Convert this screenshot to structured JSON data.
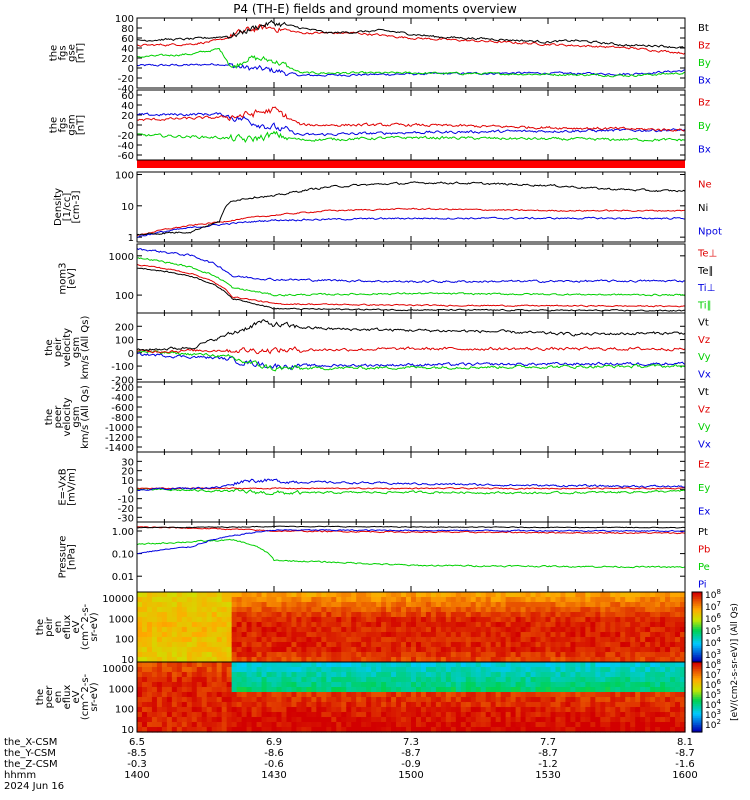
{
  "title": "P4 (TH-E) fields and ground moments overview",
  "x_axis": {
    "tick_positions_hours": [
      14.0,
      14.5,
      15.0,
      15.5,
      16.0
    ],
    "rows": [
      {
        "label": "the_X-CSM",
        "values": [
          "6.5",
          "6.9",
          "7.3",
          "7.7",
          "8.1"
        ]
      },
      {
        "label": "the_Y-CSM",
        "values": [
          "-8.5",
          "-8.6",
          "-8.7",
          "-8.7",
          "-8.7"
        ]
      },
      {
        "label": "the_Z-CSM",
        "values": [
          "-0.3",
          "-0.6",
          "-0.9",
          "-1.2",
          "-1.6"
        ]
      },
      {
        "label": "hhmm",
        "values": [
          "1400",
          "1430",
          "1500",
          "1530",
          "1600"
        ]
      }
    ],
    "date": "2024 Jun 16"
  },
  "colors": {
    "black": "#000000",
    "red": "#e00000",
    "green": "#00d000",
    "blue": "#0000e0"
  },
  "panels": [
    {
      "id": "fgs-gse",
      "ylabel": [
        "the",
        "fgs",
        "gse",
        "[nT]"
      ],
      "scale": "linear",
      "ylim": [
        -40,
        100
      ],
      "ticks": [
        "100",
        "80",
        "60",
        "40",
        "20",
        "0",
        "-20",
        "-40"
      ],
      "legend": [
        {
          "text": "Bt",
          "color": "black"
        },
        {
          "text": "Bz",
          "color": "red"
        },
        {
          "text": "By",
          "color": "green"
        },
        {
          "text": "Bx",
          "color": "blue"
        }
      ]
    },
    {
      "id": "fgs-gsm",
      "ylabel": [
        "the",
        "fgs",
        "gsm",
        "[nT]"
      ],
      "scale": "linear",
      "ylim": [
        -70,
        70
      ],
      "ticks": [
        "60",
        "40",
        "20",
        "0",
        "-20",
        "-40",
        "-60"
      ],
      "legend": [
        {
          "text": "Bz",
          "color": "red"
        },
        {
          "text": "By",
          "color": "green"
        },
        {
          "text": "Bx",
          "color": "blue"
        }
      ]
    },
    {
      "id": "density",
      "ylabel": [
        "Density",
        "[1/cc]",
        "[cm-3]"
      ],
      "scale": "log",
      "ylim": [
        0.7,
        120
      ],
      "ticks": [
        "100",
        "10",
        "1"
      ],
      "legend": [
        {
          "text": "Ne",
          "color": "red"
        },
        {
          "text": "Ni",
          "color": "black"
        },
        {
          "text": "Npot",
          "color": "blue"
        }
      ]
    },
    {
      "id": "temperature",
      "ylabel": [
        "mom3",
        "[eV]"
      ],
      "scale": "log",
      "ylim": [
        35,
        2000
      ],
      "ticks": [
        "1000",
        "100"
      ],
      "legend": [
        {
          "text": "Te⊥",
          "color": "red"
        },
        {
          "text": "Te∥",
          "color": "black"
        },
        {
          "text": "Ti⊥",
          "color": "blue"
        },
        {
          "text": "Ti∥",
          "color": "green"
        }
      ]
    },
    {
      "id": "peir-velocity",
      "ylabel": [
        "the",
        "peir",
        "velocity",
        "gsm",
        "km/s (All Qs)"
      ],
      "scale": "linear",
      "ylim": [
        -220,
        300
      ],
      "ticks": [
        "200",
        "100",
        "0",
        "-100",
        "-200"
      ],
      "legend": [
        {
          "text": "Vt",
          "color": "black"
        },
        {
          "text": "Vz",
          "color": "red"
        },
        {
          "text": "Vy",
          "color": "green"
        },
        {
          "text": "Vx",
          "color": "blue"
        }
      ]
    },
    {
      "id": "peer-velocity",
      "ylabel": [
        "the",
        "peer",
        "velocity",
        "gsm",
        "km/s (All Qs)"
      ],
      "scale": "linear",
      "ylim": [
        -1500,
        -100
      ],
      "ticks": [
        "-200",
        "-400",
        "-600",
        "-800",
        "-1000",
        "-1200",
        "-1400"
      ],
      "legend": [
        {
          "text": "Vt",
          "color": "black"
        },
        {
          "text": "Vz",
          "color": "red"
        },
        {
          "text": "Vy",
          "color": "green"
        },
        {
          "text": "Vx",
          "color": "blue"
        }
      ]
    },
    {
      "id": "efield",
      "ylabel": [
        "E=-VxB",
        "[mV/m]"
      ],
      "scale": "linear",
      "ylim": [
        -35,
        40
      ],
      "ticks": [
        "30",
        "20",
        "10",
        "0",
        "-10",
        "-20",
        "-30"
      ],
      "legend": [
        {
          "text": "Ez",
          "color": "red"
        },
        {
          "text": "Ey",
          "color": "green"
        },
        {
          "text": "Ex",
          "color": "blue"
        }
      ]
    },
    {
      "id": "pressure",
      "ylabel": [
        "Pressure",
        "[nPa]"
      ],
      "scale": "log",
      "ylim": [
        0.002,
        2.5
      ],
      "ticks": [
        "1.00",
        "0.10",
        "0.01"
      ],
      "legend": [
        {
          "text": "Pt",
          "color": "black"
        },
        {
          "text": "Pb",
          "color": "red"
        },
        {
          "text": "Pe",
          "color": "green"
        },
        {
          "text": "Pi",
          "color": "blue"
        }
      ]
    },
    {
      "id": "peir-spec",
      "ylabel": [
        "the",
        "peir",
        "en",
        "eflux",
        "eV",
        "(cm^2-s-",
        "sr-eV)"
      ],
      "scale": "log",
      "ylim": [
        7,
        20000
      ],
      "ticks": [
        "10000",
        "1000",
        "100",
        "10"
      ],
      "legend": []
    },
    {
      "id": "peer-spec",
      "ylabel": [
        "the",
        "peer",
        "en",
        "eflux",
        "eV",
        "(cm^2-s-",
        "sr-eV)"
      ],
      "scale": "log",
      "ylim": [
        7,
        20000
      ],
      "ticks": [
        "10000",
        "1000",
        "100",
        "10"
      ],
      "legend": []
    }
  ],
  "colorbars": [
    {
      "id": "cb1",
      "ticks": [
        "10^8",
        "10^7",
        "10^6",
        "10^5",
        "10^4",
        "10^3"
      ]
    },
    {
      "id": "cb2",
      "ticks": [
        "10^8",
        "10^7",
        "10^6",
        "10^5",
        "10^4",
        "10^3",
        "10^2"
      ]
    }
  ],
  "colorbar_label": "[eV/(cm2-s-sr-eV)] (All Qs)",
  "chart_data": {
    "type": "line",
    "title": "P4 (TH-E) fields and ground moments overview",
    "x_axis": "time (hh:mm), 2024 Jun 16",
    "x_range": [
      "1400",
      "1600"
    ],
    "series": [
      {
        "panel": "fgs-gse",
        "name": "Bt",
        "x": [
          14.0,
          14.1,
          14.2,
          14.3,
          14.35,
          14.4,
          14.45,
          14.5,
          14.6,
          14.7,
          14.8,
          14.9,
          15.0,
          15.1,
          15.2,
          15.3,
          15.4,
          15.5,
          15.6,
          15.7,
          15.8,
          15.9,
          16.0
        ],
        "y": [
          55,
          57,
          58,
          62,
          65,
          75,
          85,
          90,
          80,
          70,
          72,
          75,
          68,
          62,
          60,
          58,
          55,
          52,
          55,
          50,
          45,
          45,
          40
        ]
      },
      {
        "panel": "fgs-gse",
        "name": "Bz",
        "x": [
          14.0,
          14.2,
          14.3,
          14.4,
          14.45,
          14.5,
          14.6,
          14.8,
          15.0,
          15.2,
          15.4,
          15.6,
          15.8,
          16.0
        ],
        "y": [
          45,
          48,
          55,
          75,
          80,
          80,
          70,
          70,
          60,
          55,
          50,
          45,
          40,
          30
        ]
      },
      {
        "panel": "fgs-gse",
        "name": "By",
        "x": [
          14.0,
          14.2,
          14.3,
          14.35,
          14.4,
          14.5,
          14.6,
          15.0,
          15.4,
          15.8,
          16.0
        ],
        "y": [
          22,
          28,
          38,
          0,
          20,
          15,
          -10,
          -10,
          -12,
          -15,
          -10
        ]
      },
      {
        "panel": "fgs-gse",
        "name": "Bx",
        "x": [
          14.0,
          14.2,
          14.3,
          14.4,
          14.5,
          14.6,
          15.0,
          15.4,
          15.8,
          16.0
        ],
        "y": [
          5,
          6,
          8,
          0,
          -5,
          -15,
          -12,
          -10,
          -12,
          -5
        ]
      },
      {
        "panel": "density",
        "name": "Ni",
        "x": [
          14.0,
          14.2,
          14.3,
          14.35,
          14.45,
          14.5,
          14.7,
          14.9,
          15.1,
          15.3,
          15.5,
          15.7,
          15.9,
          16.0
        ],
        "y": [
          1.2,
          1.5,
          3,
          15,
          20,
          20,
          40,
          50,
          55,
          50,
          45,
          35,
          30,
          30
        ]
      },
      {
        "panel": "density",
        "name": "Ne",
        "x": [
          14.0,
          14.3,
          14.5,
          14.7,
          15.0,
          15.5,
          16.0
        ],
        "y": [
          1.1,
          3,
          5,
          7,
          8,
          7,
          7
        ]
      },
      {
        "panel": "peir-velocity",
        "name": "Vt",
        "x": [
          14.0,
          14.2,
          14.35,
          14.45,
          14.55,
          14.7,
          15.0,
          15.3,
          15.6,
          16.0
        ],
        "y": [
          20,
          40,
          150,
          230,
          200,
          180,
          170,
          160,
          140,
          150
        ]
      }
    ]
  }
}
